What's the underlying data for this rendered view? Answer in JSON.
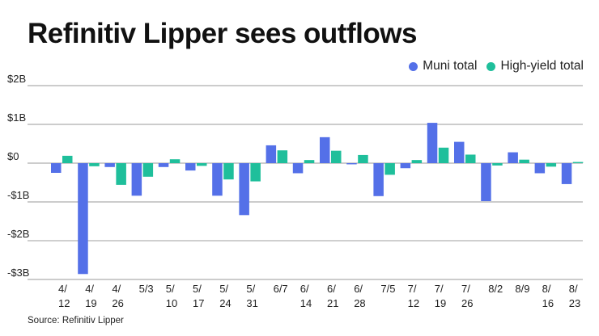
{
  "chart_data": {
    "type": "bar",
    "title": "Refinitiv Lipper sees outflows",
    "xlabel": "",
    "ylabel": "",
    "ylim": [
      -3,
      2
    ],
    "yticks": [
      2,
      1,
      0,
      -1,
      -2,
      -3
    ],
    "ytick_labels": [
      "$2B",
      "$1B",
      "$0",
      "-$1B",
      "-$2B",
      "-$3B"
    ],
    "grid": true,
    "legend_position": "top-right",
    "categories": [
      "4/12",
      "4/19",
      "4/26",
      "5/3",
      "5/10",
      "5/17",
      "5/24",
      "5/31",
      "6/7",
      "6/14",
      "6/21",
      "6/28",
      "7/5",
      "7/12",
      "7/19",
      "7/26",
      "8/2",
      "8/9",
      "8/16",
      "8/23"
    ],
    "category_labels": [
      [
        "4/",
        "12"
      ],
      [
        "4/",
        "19"
      ],
      [
        "4/",
        "26"
      ],
      [
        "5/3",
        ""
      ],
      [
        "5/",
        "10"
      ],
      [
        "5/",
        "17"
      ],
      [
        "5/",
        "24"
      ],
      [
        "5/",
        "31"
      ],
      [
        "6/7",
        ""
      ],
      [
        "6/",
        "14"
      ],
      [
        "6/",
        "21"
      ],
      [
        "6/",
        "28"
      ],
      [
        "7/5",
        ""
      ],
      [
        "7/",
        "12"
      ],
      [
        "7/",
        "19"
      ],
      [
        "7/",
        "26"
      ],
      [
        "8/2",
        ""
      ],
      [
        "8/9",
        ""
      ],
      [
        "8/",
        "16"
      ],
      [
        "8/",
        "23"
      ]
    ],
    "units": "billions USD",
    "series": [
      {
        "name": "Muni total",
        "color": "#5470e8",
        "values": [
          -0.25,
          -2.86,
          -0.1,
          -0.84,
          -0.1,
          -0.19,
          -0.84,
          -1.34,
          0.46,
          -0.26,
          0.67,
          -0.03,
          -0.85,
          -0.13,
          1.04,
          0.55,
          -0.98,
          0.28,
          -0.26,
          -0.54
        ]
      },
      {
        "name": "High-yield total",
        "color": "#1fbf9b",
        "values": [
          0.19,
          -0.08,
          -0.56,
          -0.35,
          0.1,
          -0.07,
          -0.42,
          -0.47,
          0.33,
          0.08,
          0.32,
          0.21,
          -0.3,
          0.08,
          0.4,
          0.22,
          -0.06,
          0.09,
          -0.09,
          0.03
        ]
      }
    ]
  },
  "legend": {
    "items": [
      {
        "label": "Muni total",
        "color": "#5470e8"
      },
      {
        "label": "High-yield total",
        "color": "#1fbf9b"
      }
    ]
  },
  "source": "Source: Refinitiv Lipper"
}
